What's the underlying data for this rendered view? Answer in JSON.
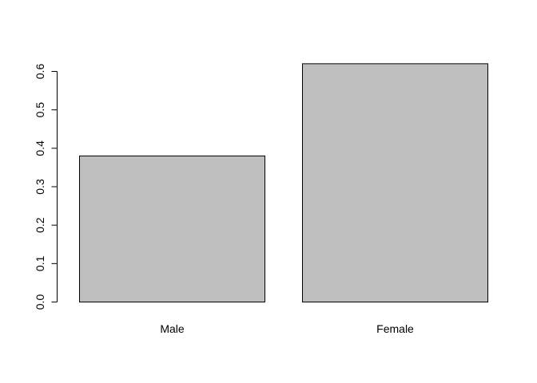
{
  "chart_data": {
    "type": "bar",
    "title": "",
    "xlabel": "",
    "ylabel": "",
    "categories": [
      "Male",
      "Female"
    ],
    "values": [
      0.38,
      0.62
    ],
    "ylim": [
      0,
      0.6
    ],
    "yticks": [
      "0.0",
      "0.1",
      "0.2",
      "0.3",
      "0.4",
      "0.5",
      "0.6"
    ],
    "bar_fill": "#bebebe",
    "bar_stroke": "#000000",
    "grid": false,
    "legend": "none"
  }
}
